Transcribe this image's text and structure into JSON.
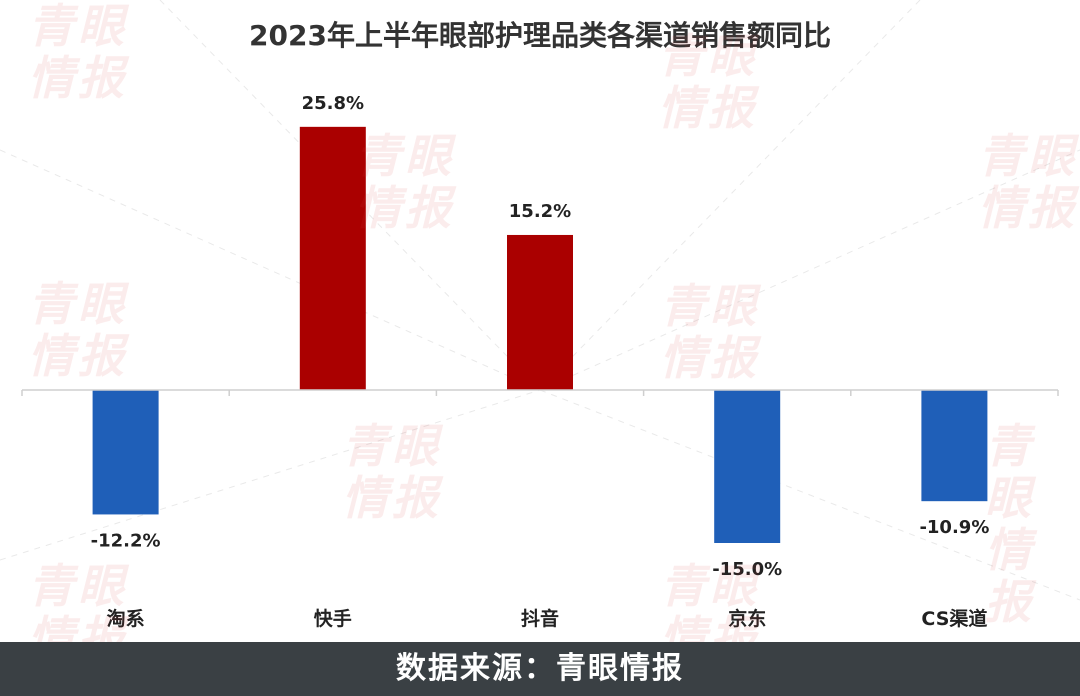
{
  "footer": {
    "source": "数据来源：青眼情报"
  },
  "watermark": {
    "line1": "青眼",
    "line2": "情报",
    "color": "#d64646"
  },
  "colors": {
    "positive": "#aa0000",
    "negative": "#1f5fb8",
    "axis": "#cfcfcf",
    "text": "#222222"
  },
  "chart_data": {
    "type": "bar",
    "title": "2023年上半年眼部护理品类各渠道销售额同比",
    "categories": [
      "淘系",
      "快手",
      "抖音",
      "京东",
      "CS渠道"
    ],
    "values": [
      -12.2,
      25.8,
      15.2,
      -15.0,
      -10.9
    ],
    "data_labels": [
      "-12.2%",
      "25.8%",
      "15.2%",
      "-15.0%",
      "-10.9%"
    ],
    "xlabel": "",
    "ylabel": "",
    "ylim": [
      -25,
      30
    ],
    "grid": false,
    "legend": "none"
  }
}
